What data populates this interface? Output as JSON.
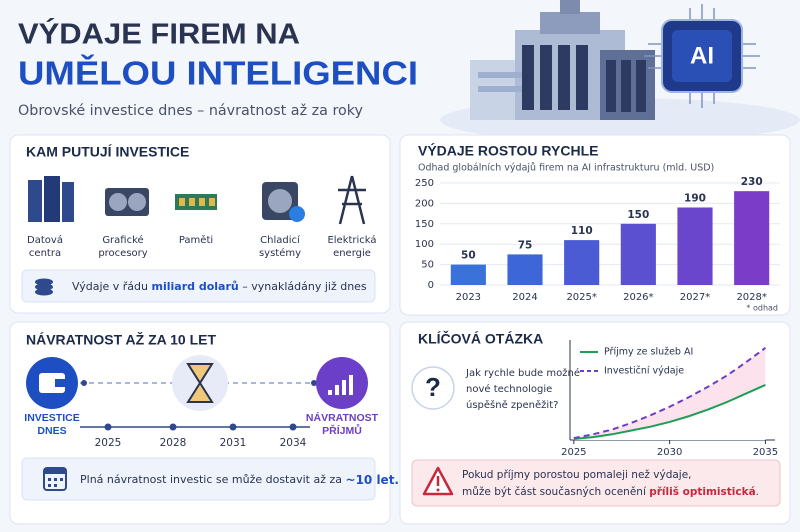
{
  "header": {
    "title_line1": "VÝDAJE FIREM NA",
    "title_line2": "UMĚLOU INTELIGENCI",
    "subtitle": "Obrovské investice dnes – návratnost až za roky",
    "badge": "AI"
  },
  "investments": {
    "title": "KAM PUTUJÍ INVESTICE",
    "items": [
      [
        "Datová",
        "centra"
      ],
      [
        "Grafické",
        "procesory"
      ],
      [
        "Paměti"
      ],
      [
        "Chladicí",
        "systémy"
      ],
      [
        "Elektrická",
        "energie"
      ]
    ],
    "note": [
      "Výdaje v řádu ",
      "miliard dolarů",
      " – vynakládány již dnes"
    ]
  },
  "payback": {
    "title": "NÁVRATNOST AŽ ZA 10 LET",
    "start_label": [
      "INVESTICE",
      "DNES"
    ],
    "end_label": [
      "NÁVRATNOST",
      "PŘÍJMŮ"
    ],
    "years": [
      "2025",
      "2028",
      "2031",
      "2034"
    ],
    "note": [
      "Plná návratnost investic se může dostavit až za ",
      "~10 let."
    ]
  },
  "question": {
    "title": "KLÍČOVÁ OTÁZKA",
    "symbol": "?",
    "text": [
      "Jak rychle bude možné",
      "nové technologie",
      "úspěšně zpeněžit?"
    ],
    "warning": [
      "Pokud příjmy porostou pomaleji než výdaje,",
      "může být část současných ocenění ",
      "příliš optimistická",
      "."
    ]
  },
  "chart_data": [
    {
      "type": "bar",
      "title": "VÝDAJE ROSTOU RYCHLE",
      "subtitle": "Odhad globálních výdajů firem na AI infrastrukturu (mld. USD)",
      "categories": [
        "2023",
        "2024",
        "2025*",
        "2026*",
        "2027*",
        "2028*"
      ],
      "values": [
        50,
        75,
        110,
        150,
        190,
        230
      ],
      "colors": [
        "#3a72da",
        "#3d67d8",
        "#4a5bd4",
        "#5a50d0",
        "#6a46cc",
        "#7b3dc8"
      ],
      "ylim": [
        0,
        250
      ],
      "yticks": [
        0,
        50,
        100,
        150,
        200,
        250
      ],
      "note": "* odhad"
    },
    {
      "type": "line",
      "x": [
        2025,
        2026,
        2027,
        2028,
        2029,
        2030,
        2031,
        2032,
        2033,
        2034,
        2035
      ],
      "xlim": [
        2024.8,
        2035.5
      ],
      "xticks": [
        2025,
        2030,
        2035
      ],
      "ylim": [
        0,
        100
      ],
      "series": [
        {
          "name": "Příjmy ze služeb AI",
          "color": "#1f9d55",
          "values": [
            1,
            3,
            6,
            10,
            14,
            19,
            25,
            32,
            40,
            49,
            58
          ]
        },
        {
          "name": "Investiční výdaje",
          "color": "#6b3fc7",
          "dashed": true,
          "area_color": "#fbe2ec",
          "values": [
            2,
            6,
            11,
            18,
            26,
            35,
            45,
            56,
            68,
            82,
            97
          ]
        }
      ]
    }
  ]
}
